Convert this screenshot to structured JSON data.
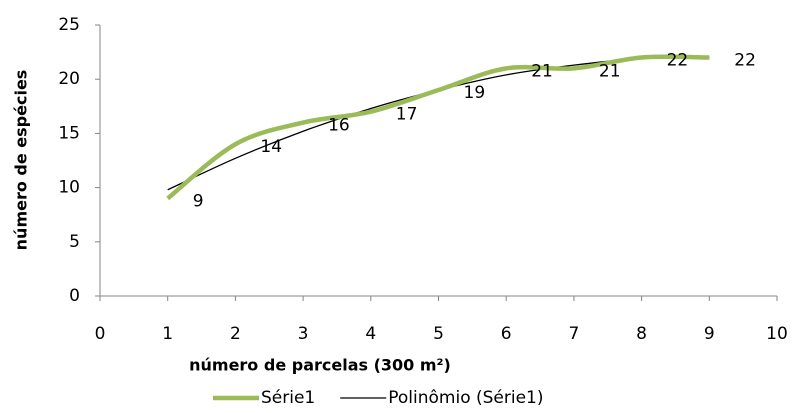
{
  "chart_data": {
    "type": "line",
    "x_label": "número de parcelas (300 m²)",
    "y_label": "número de espécies",
    "x": [
      1,
      2,
      3,
      4,
      5,
      6,
      7,
      8,
      9
    ],
    "series": [
      {
        "name": "Série1",
        "color": "#9bbb59",
        "values": [
          9,
          14,
          16,
          17,
          19,
          21,
          21,
          22,
          22
        ],
        "data_labels": true
      },
      {
        "name": "Polinômio (Série1)",
        "color": "#000000",
        "values": [
          9.8,
          12.7,
          15.2,
          17.3,
          19.0,
          20.4,
          21.3,
          21.9,
          22.0
        ]
      }
    ],
    "xlim": [
      0,
      10
    ],
    "xticks": [
      0,
      1,
      2,
      3,
      4,
      5,
      6,
      7,
      8,
      9,
      10
    ],
    "ylim": [
      0,
      25
    ],
    "yticks": [
      0,
      5,
      10,
      15,
      20,
      25
    ],
    "legend": "bottom"
  }
}
